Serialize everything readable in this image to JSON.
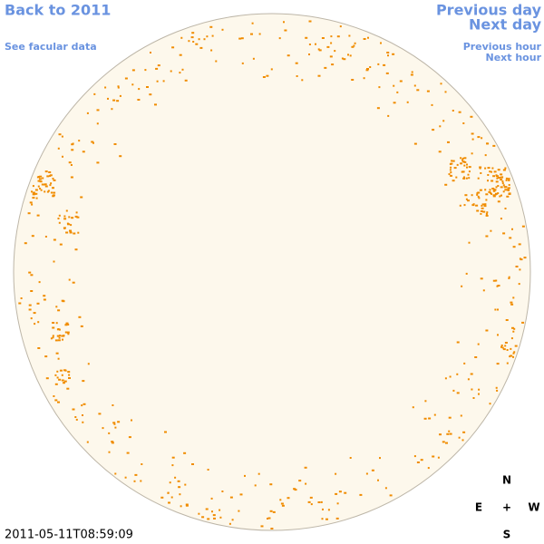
{
  "nav": {
    "back": "Back to 2011",
    "facular": "See facular data",
    "prev_day": "Previous day",
    "next_day": "Next day",
    "prev_hour": "Previous hour",
    "next_hour": "Next hour"
  },
  "timestamp": "2011-05-11T08:59:09",
  "compass": {
    "north": "N",
    "east": "E",
    "center": "+",
    "west": "W",
    "south": "S"
  }
}
